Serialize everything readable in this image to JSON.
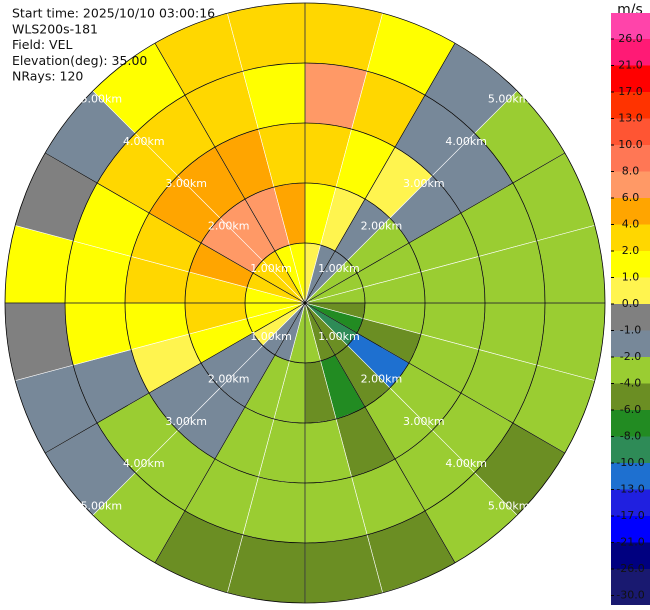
{
  "chart_data": {
    "type": "ppi",
    "annotations": [
      "Start time: 2025/10/10 03:00:16",
      "WLS200s-181",
      "Field: VEL",
      "Elevation(deg): 35.00",
      "NRays: 120"
    ],
    "x": [
      0,
      15,
      30,
      45,
      60,
      75,
      90,
      105,
      120,
      135,
      150,
      165,
      180,
      195,
      210,
      225,
      240,
      255,
      270,
      285,
      300,
      315,
      330,
      345
    ],
    "rlim": [
      0,
      5
    ],
    "rticks": [
      {
        "value": 1,
        "label": "1.00km"
      },
      {
        "value": 2,
        "label": "2.00km"
      },
      {
        "value": 3,
        "label": "3.00km"
      },
      {
        "value": 4,
        "label": "4.00km"
      },
      {
        "value": 5,
        "label": "5.00km"
      }
    ],
    "values": [
      [
        0.5,
        2,
        3,
        8,
        3
      ],
      [
        -1,
        0.5,
        1.5,
        3,
        2
      ],
      [
        -1.5,
        -1,
        0.5,
        -1.5,
        -1
      ],
      [
        -2,
        -2,
        -1.5,
        -1.5,
        -2
      ],
      [
        -2.5,
        -2.5,
        -2,
        -2,
        -2.5
      ],
      [
        -3,
        -3,
        -2.5,
        -3,
        -3
      ],
      [
        -5,
        -3,
        -3,
        -3,
        -3
      ],
      [
        -7,
        -5,
        -3,
        -3,
        -3
      ],
      [
        -9,
        -11,
        -3,
        -3,
        -5
      ],
      [
        -5,
        -5,
        -3,
        -3,
        -3
      ],
      [
        -5,
        -7,
        -5,
        -3,
        -5
      ],
      [
        -3,
        -5,
        -3,
        -3,
        -5
      ],
      [
        -3,
        -3,
        -3,
        -3,
        -5
      ],
      [
        -1.5,
        -3,
        -3,
        -3,
        -5
      ],
      [
        -1.5,
        -1.5,
        -1.5,
        -3,
        -3
      ],
      [
        0.5,
        -1.5,
        -1.5,
        -3,
        -1.5
      ],
      [
        1.5,
        1.5,
        0.5,
        -1.5,
        -1.5
      ],
      [
        1.5,
        3,
        1.5,
        1.5,
        -0.5
      ],
      [
        1.5,
        3,
        3,
        1.5,
        1.5
      ],
      [
        3,
        5,
        3,
        1.5,
        -0.5
      ],
      [
        3,
        7,
        5,
        3,
        -1.5
      ],
      [
        3,
        7,
        5,
        3,
        1.5
      ],
      [
        1.5,
        7,
        5,
        3,
        3
      ],
      [
        1.5,
        5,
        3,
        1.5,
        3
      ]
    ],
    "colorbar": {
      "label": "m/s",
      "ticks": [
        {
          "value": 26,
          "label": "26.0"
        },
        {
          "value": 21,
          "label": "21.0"
        },
        {
          "value": 17,
          "label": "17.0"
        },
        {
          "value": 13,
          "label": "13.0"
        },
        {
          "value": 10,
          "label": "10.0"
        },
        {
          "value": 8,
          "label": "8.0"
        },
        {
          "value": 6,
          "label": "6.0"
        },
        {
          "value": 4,
          "label": "4.0"
        },
        {
          "value": 2,
          "label": "2.0"
        },
        {
          "value": 1,
          "label": "1.0"
        },
        {
          "value": 0,
          "label": "0.0"
        },
        {
          "value": -1,
          "label": "-1.0"
        },
        {
          "value": -2,
          "label": "-2.0"
        },
        {
          "value": -4,
          "label": "-4.0"
        },
        {
          "value": -6,
          "label": "-6.0"
        },
        {
          "value": -8,
          "label": "-8.0"
        },
        {
          "value": -10,
          "label": "-10.0"
        },
        {
          "value": -13,
          "label": "-13.0"
        },
        {
          "value": -17,
          "label": "-17.0"
        },
        {
          "value": -21,
          "label": "-21.0"
        },
        {
          "value": -26,
          "label": "-26.0"
        },
        {
          "value": -30,
          "label": "-30.0"
        }
      ],
      "colors": [
        "#ff44aa",
        "#ff1a75",
        "#ff0000",
        "#ff3300",
        "#ff5533",
        "#ff7755",
        "#ff9966",
        "#ffa500",
        "#ffd700",
        "#ffff00",
        "#fff44f",
        "#808080",
        "#778899",
        "#9acd32",
        "#6b8e23",
        "#228b22",
        "#2e8b57",
        "#1e70d0",
        "#2020e0",
        "#0000ff",
        "#000080",
        "#191970"
      ]
    }
  }
}
